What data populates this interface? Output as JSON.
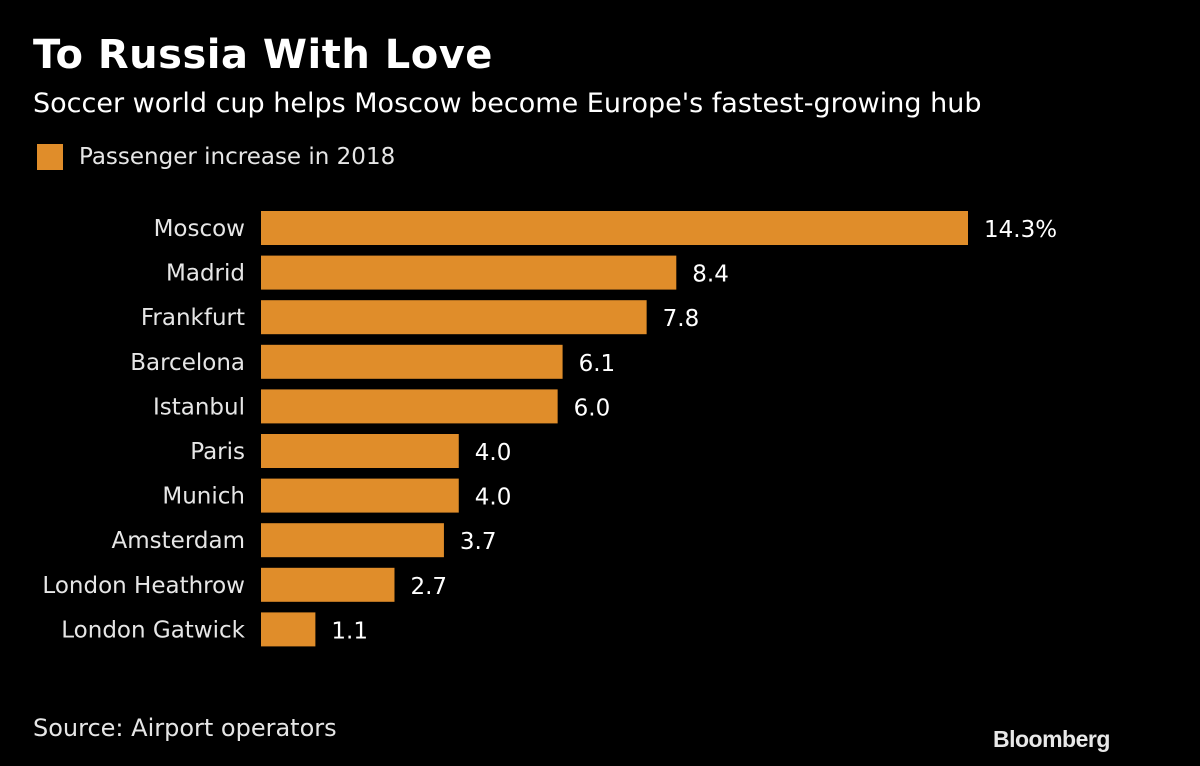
{
  "chart_data": {
    "type": "bar",
    "orientation": "horizontal",
    "title": "To Russia With Love",
    "subtitle": "Soccer world cup helps Moscow become Europe's fastest-growing hub",
    "categories": [
      "Moscow",
      "Madrid",
      "Frankfurt",
      "Barcelona",
      "Istanbul",
      "Paris",
      "Munich",
      "Amsterdam",
      "London Heathrow",
      "London Gatwick"
    ],
    "series": [
      {
        "name": "Passenger increase in 2018",
        "values": [
          14.3,
          8.4,
          7.8,
          6.1,
          6.0,
          4.0,
          4.0,
          3.7,
          2.7,
          1.1
        ],
        "color": "#E08D2A"
      }
    ],
    "value_labels": [
      "14.3%",
      "8.4",
      "7.8",
      "6.1",
      "6.0",
      "4.0",
      "4.0",
      "3.7",
      "2.7",
      "1.1"
    ],
    "xlim": [
      0,
      14.3
    ],
    "grid": false,
    "legend_placement": "top-left",
    "source": "Source: Airport operators",
    "brand": "Bloomberg",
    "background": "#000000"
  }
}
